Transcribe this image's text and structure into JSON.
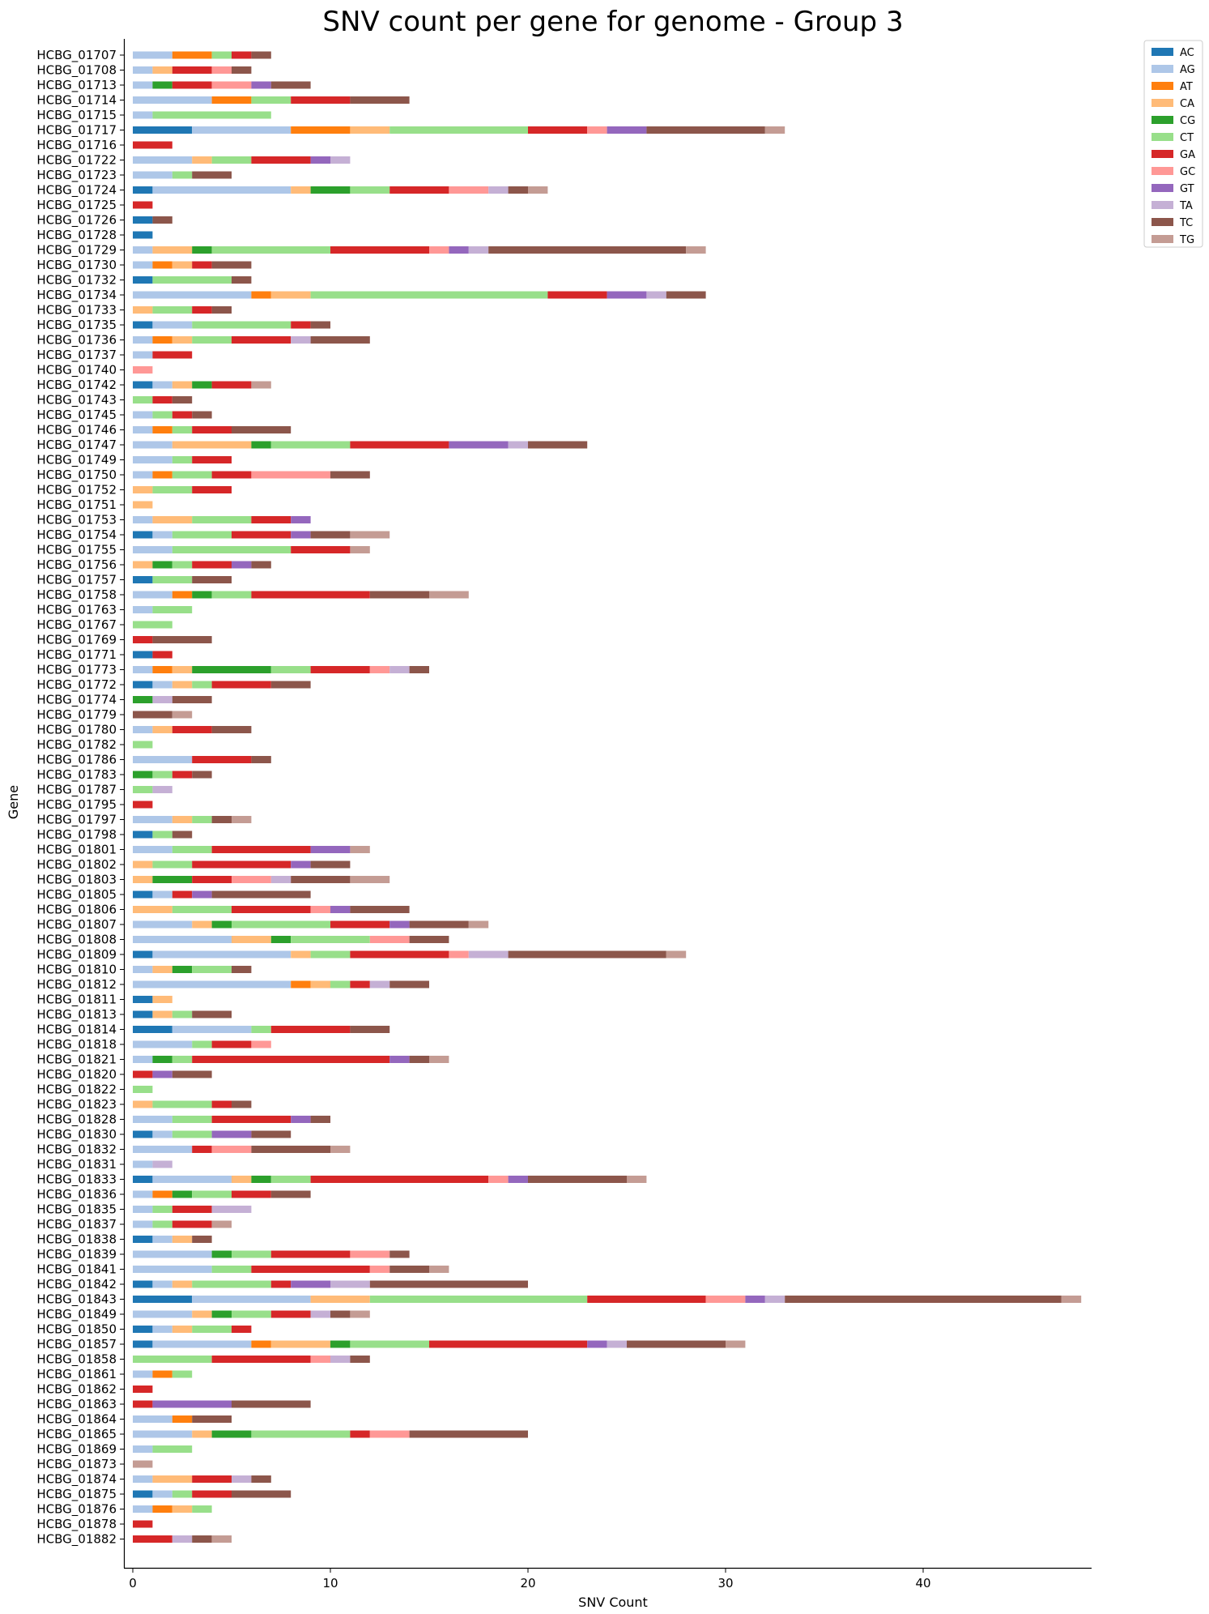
{
  "chart_data": {
    "type": "bar",
    "orientation": "horizontal",
    "stacked": true,
    "title": "SNV count per gene for genome - Group 3",
    "xlabel": "SNV Count",
    "ylabel": "Gene",
    "xlim": [
      0,
      48.5
    ],
    "xticks": [
      0,
      10,
      20,
      30,
      40
    ],
    "grid": false,
    "legend_position": "top-right",
    "series": [
      {
        "name": "AC",
        "color": "#1f77b4"
      },
      {
        "name": "AG",
        "color": "#aec7e8"
      },
      {
        "name": "AT",
        "color": "#ff7f0e"
      },
      {
        "name": "CA",
        "color": "#ffbb78"
      },
      {
        "name": "CG",
        "color": "#2ca02c"
      },
      {
        "name": "CT",
        "color": "#98df8a"
      },
      {
        "name": "GA",
        "color": "#d62728"
      },
      {
        "name": "GC",
        "color": "#ff9896"
      },
      {
        "name": "GT",
        "color": "#9467bd"
      },
      {
        "name": "TA",
        "color": "#c5b0d5"
      },
      {
        "name": "TC",
        "color": "#8c564b"
      },
      {
        "name": "TG",
        "color": "#c49c94"
      }
    ],
    "categories": [
      "HCBG_01707",
      "HCBG_01708",
      "HCBG_01713",
      "HCBG_01714",
      "HCBG_01715",
      "HCBG_01717",
      "HCBG_01716",
      "HCBG_01722",
      "HCBG_01723",
      "HCBG_01724",
      "HCBG_01725",
      "HCBG_01726",
      "HCBG_01728",
      "HCBG_01729",
      "HCBG_01730",
      "HCBG_01732",
      "HCBG_01734",
      "HCBG_01733",
      "HCBG_01735",
      "HCBG_01736",
      "HCBG_01737",
      "HCBG_01740",
      "HCBG_01742",
      "HCBG_01743",
      "HCBG_01745",
      "HCBG_01746",
      "HCBG_01747",
      "HCBG_01749",
      "HCBG_01750",
      "HCBG_01752",
      "HCBG_01751",
      "HCBG_01753",
      "HCBG_01754",
      "HCBG_01755",
      "HCBG_01756",
      "HCBG_01757",
      "HCBG_01758",
      "HCBG_01763",
      "HCBG_01767",
      "HCBG_01769",
      "HCBG_01771",
      "HCBG_01773",
      "HCBG_01772",
      "HCBG_01774",
      "HCBG_01779",
      "HCBG_01780",
      "HCBG_01782",
      "HCBG_01786",
      "HCBG_01783",
      "HCBG_01787",
      "HCBG_01795",
      "HCBG_01797",
      "HCBG_01798",
      "HCBG_01801",
      "HCBG_01802",
      "HCBG_01803",
      "HCBG_01805",
      "HCBG_01806",
      "HCBG_01807",
      "HCBG_01808",
      "HCBG_01809",
      "HCBG_01810",
      "HCBG_01812",
      "HCBG_01811",
      "HCBG_01813",
      "HCBG_01814",
      "HCBG_01818",
      "HCBG_01821",
      "HCBG_01820",
      "HCBG_01822",
      "HCBG_01823",
      "HCBG_01828",
      "HCBG_01830",
      "HCBG_01832",
      "HCBG_01831",
      "HCBG_01833",
      "HCBG_01836",
      "HCBG_01835",
      "HCBG_01837",
      "HCBG_01838",
      "HCBG_01839",
      "HCBG_01841",
      "HCBG_01842",
      "HCBG_01843",
      "HCBG_01849",
      "HCBG_01850",
      "HCBG_01857",
      "HCBG_01858",
      "HCBG_01861",
      "HCBG_01862",
      "HCBG_01863",
      "HCBG_01864",
      "HCBG_01865",
      "HCBG_01869",
      "HCBG_01873",
      "HCBG_01874",
      "HCBG_01875",
      "HCBG_01876",
      "HCBG_01878",
      "HCBG_01882"
    ],
    "values": [
      [
        0,
        2,
        2,
        0,
        0,
        1,
        1,
        0,
        0,
        0,
        1,
        0
      ],
      [
        0,
        1,
        0,
        1,
        0,
        0,
        2,
        1,
        0,
        0,
        1,
        0
      ],
      [
        0,
        1,
        0,
        0,
        1,
        0,
        2,
        2,
        1,
        0,
        2,
        0
      ],
      [
        0,
        4,
        2,
        0,
        0,
        2,
        3,
        0,
        0,
        0,
        3,
        0
      ],
      [
        0,
        1,
        0,
        0,
        0,
        6,
        0,
        0,
        0,
        0,
        0,
        0
      ],
      [
        3,
        5,
        3,
        2,
        0,
        7,
        3,
        1,
        2,
        0,
        6,
        1
      ],
      [
        0,
        0,
        0,
        0,
        0,
        0,
        2,
        0,
        0,
        0,
        0,
        0
      ],
      [
        0,
        3,
        0,
        1,
        0,
        2,
        3,
        0,
        1,
        1,
        0,
        0
      ],
      [
        0,
        2,
        0,
        0,
        0,
        1,
        0,
        0,
        0,
        0,
        2,
        0
      ],
      [
        1,
        7,
        0,
        1,
        2,
        2,
        3,
        2,
        0,
        1,
        1,
        1
      ],
      [
        0,
        0,
        0,
        0,
        0,
        0,
        1,
        0,
        0,
        0,
        0,
        0
      ],
      [
        1,
        0,
        0,
        0,
        0,
        0,
        0,
        0,
        0,
        0,
        1,
        0
      ],
      [
        1,
        0,
        0,
        0,
        0,
        0,
        0,
        0,
        0,
        0,
        0,
        0
      ],
      [
        0,
        1,
        0,
        2,
        1,
        6,
        5,
        1,
        1,
        1,
        10,
        1
      ],
      [
        0,
        1,
        1,
        1,
        0,
        0,
        1,
        0,
        0,
        0,
        2,
        0
      ],
      [
        1,
        0,
        0,
        0,
        0,
        4,
        0,
        0,
        0,
        0,
        1,
        0
      ],
      [
        0,
        6,
        1,
        2,
        0,
        12,
        3,
        0,
        2,
        1,
        2,
        0
      ],
      [
        0,
        0,
        0,
        1,
        0,
        2,
        1,
        0,
        0,
        0,
        1,
        0
      ],
      [
        1,
        2,
        0,
        0,
        0,
        5,
        1,
        0,
        0,
        0,
        1,
        0
      ],
      [
        0,
        1,
        1,
        1,
        0,
        2,
        3,
        0,
        0,
        1,
        3,
        0
      ],
      [
        0,
        1,
        0,
        0,
        0,
        0,
        2,
        0,
        0,
        0,
        0,
        0
      ],
      [
        0,
        0,
        0,
        0,
        0,
        0,
        0,
        1,
        0,
        0,
        0,
        0
      ],
      [
        1,
        1,
        0,
        1,
        1,
        0,
        2,
        0,
        0,
        0,
        0,
        1
      ],
      [
        0,
        0,
        0,
        0,
        0,
        1,
        1,
        0,
        0,
        0,
        1,
        0
      ],
      [
        0,
        1,
        0,
        0,
        0,
        1,
        1,
        0,
        0,
        0,
        1,
        0
      ],
      [
        0,
        1,
        1,
        0,
        0,
        1,
        2,
        0,
        0,
        0,
        3,
        0
      ],
      [
        0,
        2,
        0,
        4,
        1,
        4,
        5,
        0,
        3,
        1,
        3,
        0
      ],
      [
        0,
        2,
        0,
        0,
        0,
        1,
        2,
        0,
        0,
        0,
        0,
        0
      ],
      [
        0,
        1,
        1,
        0,
        0,
        2,
        2,
        4,
        0,
        0,
        2,
        0
      ],
      [
        0,
        0,
        0,
        1,
        0,
        2,
        2,
        0,
        0,
        0,
        0,
        0
      ],
      [
        0,
        0,
        0,
        1,
        0,
        0,
        0,
        0,
        0,
        0,
        0,
        0
      ],
      [
        0,
        1,
        0,
        2,
        0,
        3,
        2,
        0,
        1,
        0,
        0,
        0
      ],
      [
        1,
        1,
        0,
        0,
        0,
        3,
        3,
        0,
        1,
        0,
        2,
        2
      ],
      [
        0,
        2,
        0,
        0,
        0,
        6,
        3,
        0,
        0,
        0,
        0,
        1
      ],
      [
        0,
        0,
        0,
        1,
        1,
        1,
        2,
        0,
        1,
        0,
        1,
        0
      ],
      [
        1,
        0,
        0,
        0,
        0,
        2,
        0,
        0,
        0,
        0,
        2,
        0
      ],
      [
        0,
        2,
        1,
        0,
        1,
        2,
        6,
        0,
        0,
        0,
        3,
        2
      ],
      [
        0,
        1,
        0,
        0,
        0,
        2,
        0,
        0,
        0,
        0,
        0,
        0
      ],
      [
        0,
        0,
        0,
        0,
        0,
        2,
        0,
        0,
        0,
        0,
        0,
        0
      ],
      [
        0,
        0,
        0,
        0,
        0,
        0,
        1,
        0,
        0,
        0,
        3,
        0
      ],
      [
        1,
        0,
        0,
        0,
        0,
        0,
        1,
        0,
        0,
        0,
        0,
        0
      ],
      [
        0,
        1,
        1,
        1,
        4,
        2,
        3,
        1,
        0,
        1,
        1,
        0
      ],
      [
        1,
        1,
        0,
        1,
        0,
        1,
        3,
        0,
        0,
        0,
        2,
        0
      ],
      [
        0,
        0,
        0,
        0,
        1,
        0,
        0,
        0,
        0,
        1,
        2,
        0
      ],
      [
        0,
        0,
        0,
        0,
        0,
        0,
        0,
        0,
        0,
        0,
        2,
        1
      ],
      [
        0,
        1,
        0,
        1,
        0,
        0,
        2,
        0,
        0,
        0,
        2,
        0
      ],
      [
        0,
        0,
        0,
        0,
        0,
        1,
        0,
        0,
        0,
        0,
        0,
        0
      ],
      [
        0,
        3,
        0,
        0,
        0,
        0,
        3,
        0,
        0,
        0,
        1,
        0
      ],
      [
        0,
        0,
        0,
        0,
        1,
        1,
        1,
        0,
        0,
        0,
        1,
        0
      ],
      [
        0,
        0,
        0,
        0,
        0,
        1,
        0,
        0,
        0,
        1,
        0,
        0
      ],
      [
        0,
        0,
        0,
        0,
        0,
        0,
        1,
        0,
        0,
        0,
        0,
        0
      ],
      [
        0,
        2,
        0,
        1,
        0,
        1,
        0,
        0,
        0,
        0,
        1,
        1
      ],
      [
        1,
        0,
        0,
        0,
        0,
        1,
        0,
        0,
        0,
        0,
        1,
        0
      ],
      [
        0,
        2,
        0,
        0,
        0,
        2,
        5,
        0,
        2,
        0,
        0,
        1
      ],
      [
        0,
        0,
        0,
        1,
        0,
        2,
        5,
        0,
        1,
        0,
        2,
        0
      ],
      [
        0,
        0,
        0,
        1,
        2,
        0,
        2,
        2,
        0,
        1,
        3,
        2
      ],
      [
        1,
        1,
        0,
        0,
        0,
        0,
        1,
        0,
        1,
        0,
        5,
        0
      ],
      [
        0,
        0,
        0,
        2,
        0,
        3,
        4,
        1,
        1,
        0,
        3,
        0
      ],
      [
        0,
        3,
        0,
        1,
        1,
        5,
        3,
        0,
        1,
        0,
        3,
        1
      ],
      [
        0,
        5,
        0,
        2,
        1,
        4,
        0,
        2,
        0,
        0,
        2,
        0
      ],
      [
        1,
        7,
        0,
        1,
        0,
        2,
        5,
        1,
        0,
        2,
        8,
        1
      ],
      [
        0,
        1,
        0,
        1,
        1,
        2,
        0,
        0,
        0,
        0,
        1,
        0
      ],
      [
        0,
        8,
        1,
        1,
        0,
        1,
        1,
        0,
        0,
        1,
        2,
        0
      ],
      [
        1,
        0,
        0,
        1,
        0,
        0,
        0,
        0,
        0,
        0,
        0,
        0
      ],
      [
        1,
        0,
        0,
        1,
        0,
        1,
        0,
        0,
        0,
        0,
        2,
        0
      ],
      [
        2,
        4,
        0,
        0,
        0,
        1,
        4,
        0,
        0,
        0,
        2,
        0
      ],
      [
        0,
        3,
        0,
        0,
        0,
        1,
        2,
        1,
        0,
        0,
        0,
        0
      ],
      [
        0,
        1,
        0,
        0,
        1,
        1,
        10,
        0,
        1,
        0,
        1,
        1
      ],
      [
        0,
        0,
        0,
        0,
        0,
        0,
        1,
        0,
        1,
        0,
        2,
        0
      ],
      [
        0,
        0,
        0,
        0,
        0,
        1,
        0,
        0,
        0,
        0,
        0,
        0
      ],
      [
        0,
        0,
        0,
        1,
        0,
        3,
        1,
        0,
        0,
        0,
        1,
        0
      ],
      [
        0,
        2,
        0,
        0,
        0,
        2,
        4,
        0,
        1,
        0,
        1,
        0
      ],
      [
        1,
        1,
        0,
        0,
        0,
        2,
        0,
        0,
        2,
        0,
        2,
        0
      ],
      [
        0,
        3,
        0,
        0,
        0,
        0,
        1,
        2,
        0,
        0,
        4,
        1
      ],
      [
        0,
        1,
        0,
        0,
        0,
        0,
        0,
        0,
        0,
        1,
        0,
        0
      ],
      [
        1,
        4,
        0,
        1,
        1,
        2,
        9,
        1,
        1,
        0,
        5,
        1
      ],
      [
        0,
        1,
        1,
        0,
        1,
        2,
        2,
        0,
        0,
        0,
        2,
        0
      ],
      [
        0,
        1,
        0,
        0,
        0,
        1,
        2,
        0,
        0,
        2,
        0,
        0
      ],
      [
        0,
        1,
        0,
        0,
        0,
        1,
        2,
        0,
        0,
        0,
        0,
        1
      ],
      [
        1,
        1,
        0,
        1,
        0,
        0,
        0,
        0,
        0,
        0,
        1,
        0
      ],
      [
        0,
        4,
        0,
        0,
        1,
        2,
        4,
        2,
        0,
        0,
        1,
        0
      ],
      [
        0,
        4,
        0,
        0,
        0,
        2,
        6,
        1,
        0,
        0,
        2,
        1
      ],
      [
        1,
        1,
        0,
        1,
        0,
        4,
        1,
        0,
        2,
        2,
        8,
        0
      ],
      [
        3,
        6,
        0,
        3,
        0,
        11,
        6,
        2,
        1,
        1,
        14,
        1
      ],
      [
        0,
        3,
        0,
        1,
        1,
        2,
        2,
        0,
        0,
        1,
        1,
        1
      ],
      [
        1,
        1,
        0,
        1,
        0,
        2,
        1,
        0,
        0,
        0,
        0,
        0
      ],
      [
        1,
        5,
        1,
        3,
        1,
        4,
        8,
        0,
        1,
        1,
        5,
        1
      ],
      [
        0,
        0,
        0,
        0,
        0,
        4,
        5,
        1,
        0,
        1,
        1,
        0
      ],
      [
        0,
        1,
        1,
        0,
        0,
        1,
        0,
        0,
        0,
        0,
        0,
        0
      ],
      [
        0,
        0,
        0,
        0,
        0,
        0,
        1,
        0,
        0,
        0,
        0,
        0
      ],
      [
        0,
        0,
        0,
        0,
        0,
        0,
        1,
        0,
        4,
        0,
        4,
        0
      ],
      [
        0,
        2,
        1,
        0,
        0,
        0,
        0,
        0,
        0,
        0,
        2,
        0
      ],
      [
        0,
        3,
        0,
        1,
        2,
        5,
        1,
        2,
        0,
        0,
        6,
        0
      ],
      [
        0,
        1,
        0,
        0,
        0,
        2,
        0,
        0,
        0,
        0,
        0,
        0
      ],
      [
        0,
        0,
        0,
        0,
        0,
        0,
        0,
        0,
        0,
        0,
        0,
        1
      ],
      [
        0,
        1,
        0,
        2,
        0,
        0,
        2,
        0,
        0,
        1,
        1,
        0
      ],
      [
        1,
        1,
        0,
        0,
        0,
        1,
        2,
        0,
        0,
        0,
        3,
        0
      ],
      [
        0,
        1,
        1,
        1,
        0,
        1,
        0,
        0,
        0,
        0,
        0,
        0
      ],
      [
        0,
        0,
        0,
        0,
        0,
        0,
        1,
        0,
        0,
        0,
        0,
        0
      ],
      [
        0,
        0,
        0,
        0,
        0,
        0,
        2,
        0,
        0,
        1,
        1,
        1
      ]
    ]
  }
}
